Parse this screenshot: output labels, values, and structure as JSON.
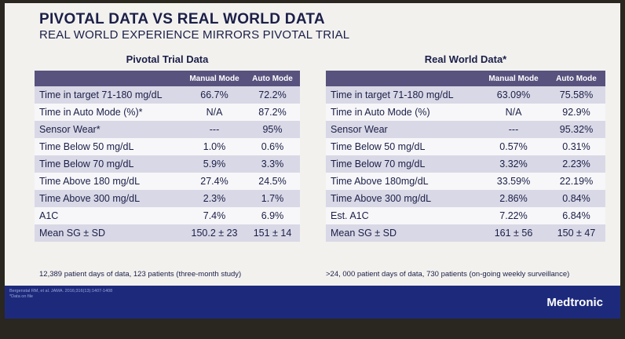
{
  "slide": {
    "title": "PIVOTAL DATA VS REAL WORLD DATA",
    "subtitle": "REAL WORLD EXPERIENCE MIRRORS PIVOTAL TRIAL"
  },
  "pivotal": {
    "heading": "Pivotal Trial Data",
    "col_manual": "Manual Mode",
    "col_auto": "Auto Mode",
    "rows": [
      {
        "label": "Time in target 71-180 mg/dL",
        "manual": "66.7%",
        "auto": "72.2%"
      },
      {
        "label": "Time in Auto Mode (%)*",
        "manual": "N/A",
        "auto": "87.2%"
      },
      {
        "label": "Sensor Wear*",
        "manual": "---",
        "auto": "95%"
      },
      {
        "label": "Time Below 50 mg/dL",
        "manual": "1.0%",
        "auto": "0.6%"
      },
      {
        "label": "Time Below 70 mg/dL",
        "manual": "5.9%",
        "auto": "3.3%"
      },
      {
        "label": "Time Above 180 mg/dL",
        "manual": "27.4%",
        "auto": "24.5%"
      },
      {
        "label": "Time Above 300 mg/dL",
        "manual": "2.3%",
        "auto": "1.7%"
      },
      {
        "label": "A1C",
        "manual": "7.4%",
        "auto": "6.9%"
      },
      {
        "label": "Mean SG ± SD",
        "manual": "150.2 ± 23",
        "auto": "151 ± 14"
      }
    ],
    "footnote": "12,389 patient days of data, 123 patients (three-month study)"
  },
  "real_world": {
    "heading": "Real World Data*",
    "col_manual": "Manual Mode",
    "col_auto": "Auto Mode",
    "rows": [
      {
        "label": "Time in target 71-180 mg/dL",
        "manual": "63.09%",
        "auto": "75.58%"
      },
      {
        "label": "Time in Auto Mode (%)",
        "manual": "N/A",
        "auto": "92.9%"
      },
      {
        "label": "Sensor Wear",
        "manual": "---",
        "auto": "95.32%"
      },
      {
        "label": "Time Below 50 mg/dL",
        "manual": "0.57%",
        "auto": "0.31%"
      },
      {
        "label": "Time Below 70 mg/dL",
        "manual": "3.32%",
        "auto": "2.23%"
      },
      {
        "label": "Time Above 180mg/dL",
        "manual": "33.59%",
        "auto": "22.19%"
      },
      {
        "label": "Time Above 300 mg/dL",
        "manual": "2.86%",
        "auto": "0.84%"
      },
      {
        "label": "Est. A1C",
        "manual": "7.22%",
        "auto": "6.84%"
      },
      {
        "label": "Mean SG ± SD",
        "manual": "161 ± 56",
        "auto": "150 ± 47"
      }
    ],
    "footnote": ">24, 000 patient days of data, 730 patients (on-going weekly surveillance)"
  },
  "footer": {
    "reference": "Bergenstal RM, et al. JAMA. 2016;316(13):1407-1408",
    "reference_note": "*Data on file",
    "brand": "Medtronic"
  }
}
